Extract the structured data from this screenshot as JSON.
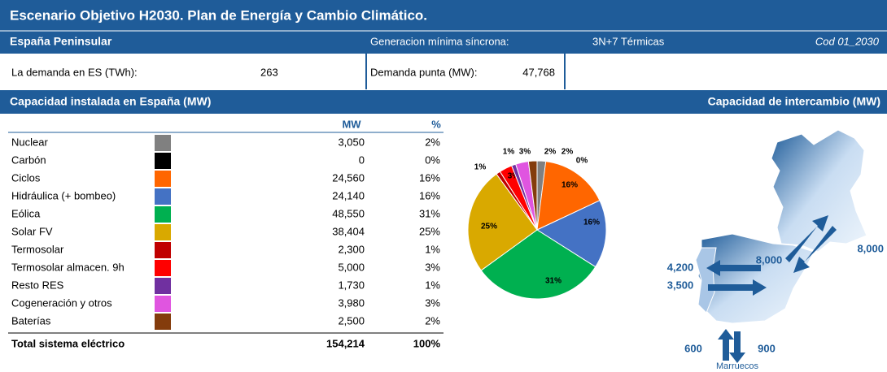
{
  "header": {
    "title": "Escenario Objetivo H2030. Plan de Energía y Cambio Climático.",
    "region": "España Peninsular",
    "generation_label": "Generacion mínima síncrona:",
    "generation_value": "3N+7 Térmicas",
    "code": "Cod 01_2030"
  },
  "demand": {
    "label": "La demanda en ES (TWh):",
    "value": "263",
    "peak_label": "Demanda punta (MW):",
    "peak_value": "47,768"
  },
  "capacity": {
    "title": "Capacidad instalada en España (MW)",
    "columns": [
      "MW",
      "%"
    ],
    "rows": [
      {
        "name": "Nuclear",
        "mw": "3,050",
        "pct": "2%"
      },
      {
        "name": "Carbón",
        "mw": "0",
        "pct": "0%"
      },
      {
        "name": "Ciclos",
        "mw": "24,560",
        "pct": "16%"
      },
      {
        "name": "Hidráulica (+ bombeo)",
        "mw": "24,140",
        "pct": "16%"
      },
      {
        "name": "Eólica",
        "mw": "48,550",
        "pct": "31%"
      },
      {
        "name": "Solar FV",
        "mw": "38,404",
        "pct": "25%"
      },
      {
        "name": "Termosolar",
        "mw": "2,300",
        "pct": "1%"
      },
      {
        "name": "Termosolar almacen. 9h",
        "mw": "5,000",
        "pct": "3%"
      },
      {
        "name": "Resto RES",
        "mw": "1,730",
        "pct": "1%"
      },
      {
        "name": "Cogeneración y otros",
        "mw": "3,980",
        "pct": "3%"
      },
      {
        "name": "Baterías",
        "mw": "2,500",
        "pct": "2%"
      }
    ],
    "total": {
      "name": "Total sistema eléctrico",
      "mw": "154,214",
      "pct": "100%"
    }
  },
  "chart_data": {
    "type": "pie",
    "values": [
      2,
      0,
      16,
      16,
      31,
      25,
      1,
      3,
      1,
      3,
      2
    ],
    "value_labels": [
      "2%",
      "0%",
      "16%",
      "16%",
      "31%",
      "25%",
      "1%",
      "3%",
      "1%",
      "3%",
      "2%"
    ],
    "colors": [
      "#808080",
      "#000000",
      "#ff6600",
      "#4472c4",
      "#00b050",
      "#d9a900",
      "#c00000",
      "#ff0000",
      "#7030a0",
      "#e055e0",
      "#843c0c"
    ]
  },
  "exchange": {
    "title": "Capacidad de intercambio (MW)",
    "france_import": "8,000",
    "france_export": "8,000",
    "portugal_import": "4,200",
    "portugal_export": "3,500",
    "morocco_export": "600",
    "morocco_import": "900",
    "morocco": "Marruecos"
  }
}
